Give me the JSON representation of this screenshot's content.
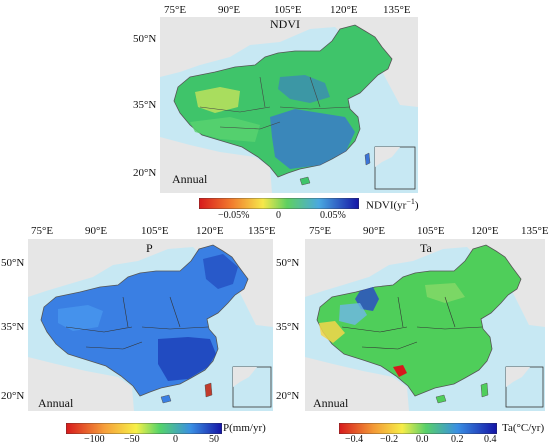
{
  "panels": {
    "ndvi": {
      "title": "NDVI",
      "period": "Annual",
      "lon_ticks": [
        "75°E",
        "90°E",
        "105°E",
        "120°E",
        "135°E"
      ],
      "lat_ticks": [
        "50°N",
        "35°N",
        "20°N"
      ],
      "colorbar": {
        "ticks": [
          "−0.05%",
          "0",
          "0.05%"
        ],
        "unit": "NDVI(yr",
        "unit_sup": "−1",
        "unit_end": ")"
      }
    },
    "p": {
      "title": "P",
      "period": "Annual",
      "lon_ticks": [
        "75°E",
        "90°E",
        "105°E",
        "120°E",
        "135°E"
      ],
      "lat_ticks": [
        "50°N",
        "35°N",
        "20°N"
      ],
      "colorbar": {
        "ticks": [
          "−100",
          "−50",
          "0",
          "50"
        ],
        "unit": "P(mm/yr)"
      }
    },
    "ta": {
      "title": "Ta",
      "period": "Annual",
      "lon_ticks": [
        "75°E",
        "90°E",
        "105°E",
        "120°E",
        "135°E"
      ],
      "lat_ticks": [
        "50°N",
        "35°N",
        "20°N"
      ],
      "colorbar": {
        "ticks": [
          "−0.4",
          "−0.2",
          "0.0",
          "0.2",
          "0.4"
        ],
        "unit": "Ta(°C/yr)"
      }
    }
  },
  "colors": {
    "sea": "#c7e8f3",
    "land_other": "#e6e6e6",
    "ndvi_main": "#3fc46a",
    "p_main": "#2d6fe0",
    "ta_main": "#4fce5a"
  }
}
